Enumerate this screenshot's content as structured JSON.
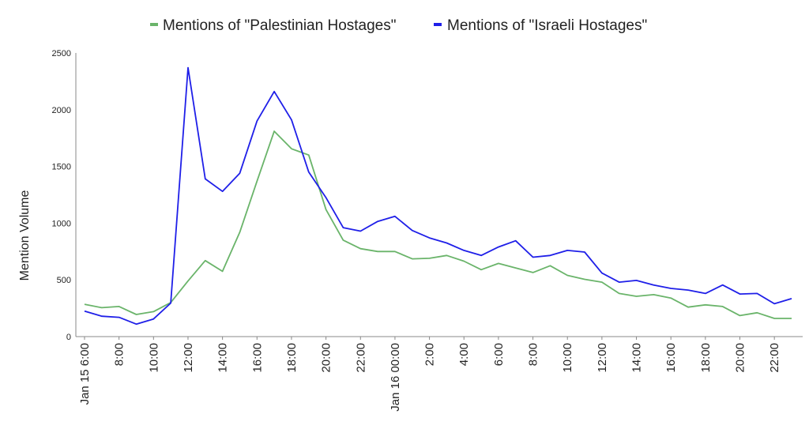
{
  "chart_data": {
    "type": "line",
    "ylabel": "Mention Volume",
    "ylim": [
      0,
      2500
    ],
    "yticks": [
      0,
      500,
      1000,
      1500,
      2000,
      2500
    ],
    "grid": false,
    "legend_position": "top-center",
    "x": [
      "Jan 15 6:00",
      "7:00",
      "8:00",
      "9:00",
      "10:00",
      "11:00",
      "12:00",
      "13:00",
      "14:00",
      "15:00",
      "16:00",
      "17:00",
      "18:00",
      "19:00",
      "20:00",
      "21:00",
      "22:00",
      "23:00",
      "Jan 16 00:00",
      "1:00",
      "2:00",
      "3:00",
      "4:00",
      "5:00",
      "6:00",
      "7:00",
      "8:00",
      "9:00",
      "10:00",
      "11:00",
      "12:00",
      "13:00",
      "14:00",
      "15:00",
      "16:00",
      "17:00",
      "18:00",
      "19:00",
      "20:00",
      "21:00",
      "22:00",
      "23:00"
    ],
    "xtick_labels": [
      {
        "index": 0,
        "label": "Jan 15 6:00"
      },
      {
        "index": 2,
        "label": "8:00"
      },
      {
        "index": 4,
        "label": "10:00"
      },
      {
        "index": 6,
        "label": "12:00"
      },
      {
        "index": 8,
        "label": "14:00"
      },
      {
        "index": 10,
        "label": "16:00"
      },
      {
        "index": 12,
        "label": "18:00"
      },
      {
        "index": 14,
        "label": "20:00"
      },
      {
        "index": 16,
        "label": "22:00"
      },
      {
        "index": 18,
        "label": "Jan 16 00:00"
      },
      {
        "index": 20,
        "label": "2:00"
      },
      {
        "index": 22,
        "label": "4:00"
      },
      {
        "index": 24,
        "label": "6:00"
      },
      {
        "index": 26,
        "label": "8:00"
      },
      {
        "index": 28,
        "label": "10:00"
      },
      {
        "index": 30,
        "label": "12:00"
      },
      {
        "index": 32,
        "label": "14:00"
      },
      {
        "index": 34,
        "label": "16:00"
      },
      {
        "index": 36,
        "label": "18:00"
      },
      {
        "index": 38,
        "label": "20:00"
      },
      {
        "index": 40,
        "label": "22:00"
      }
    ],
    "series": [
      {
        "name": "Mentions of \"Palestinian Hostages\"",
        "color": "#6ab46a",
        "values": [
          285,
          255,
          265,
          195,
          220,
          300,
          490,
          670,
          575,
          920,
          1370,
          1810,
          1655,
          1600,
          1120,
          850,
          775,
          750,
          750,
          685,
          690,
          715,
          665,
          590,
          645,
          605,
          565,
          625,
          540,
          505,
          480,
          380,
          355,
          370,
          340,
          260,
          280,
          265,
          185,
          210,
          160,
          160
        ]
      },
      {
        "name": "Mentions of \"Israeli Hostages\"",
        "color": "#1f1fe8",
        "values": [
          225,
          180,
          170,
          110,
          155,
          295,
          2370,
          1390,
          1280,
          1440,
          1900,
          2160,
          1910,
          1450,
          1225,
          960,
          930,
          1015,
          1060,
          935,
          870,
          825,
          760,
          715,
          790,
          845,
          700,
          715,
          760,
          745,
          560,
          480,
          495,
          455,
          425,
          410,
          380,
          455,
          375,
          380,
          290,
          335
        ]
      }
    ]
  }
}
